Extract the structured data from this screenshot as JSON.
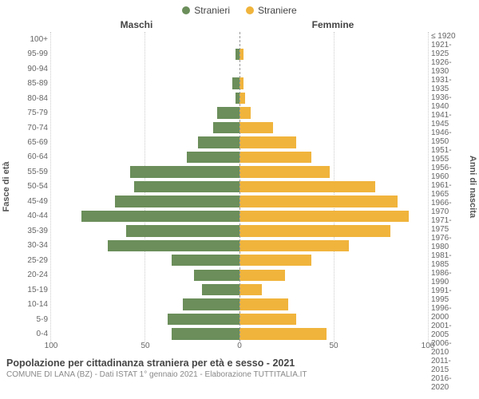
{
  "chart": {
    "type": "population-pyramid",
    "legend": {
      "male": {
        "label": "Stranieri",
        "color": "#6b8e5a"
      },
      "female": {
        "label": "Straniere",
        "color": "#f0b43c"
      }
    },
    "headers": {
      "male": "Maschi",
      "female": "Femmine"
    },
    "y_left_label": "Fasce di età",
    "y_right_label": "Anni di nascita",
    "x_max": 100,
    "x_ticks": [
      0,
      50,
      100
    ],
    "bar_male_color": "#6b8e5a",
    "bar_female_color": "#f0b43c",
    "grid_color": "#cccccc",
    "rows": [
      {
        "age": "100+",
        "birth": "≤ 1920",
        "m": 0,
        "f": 0
      },
      {
        "age": "95-99",
        "birth": "1921-1925",
        "m": 2,
        "f": 2
      },
      {
        "age": "90-94",
        "birth": "1926-1930",
        "m": 0,
        "f": 0
      },
      {
        "age": "85-89",
        "birth": "1931-1935",
        "m": 4,
        "f": 2
      },
      {
        "age": "80-84",
        "birth": "1936-1940",
        "m": 2,
        "f": 3
      },
      {
        "age": "75-79",
        "birth": "1941-1945",
        "m": 12,
        "f": 6
      },
      {
        "age": "70-74",
        "birth": "1946-1950",
        "m": 14,
        "f": 18
      },
      {
        "age": "65-69",
        "birth": "1951-1955",
        "m": 22,
        "f": 30
      },
      {
        "age": "60-64",
        "birth": "1956-1960",
        "m": 28,
        "f": 38
      },
      {
        "age": "55-59",
        "birth": "1961-1965",
        "m": 58,
        "f": 48
      },
      {
        "age": "50-54",
        "birth": "1966-1970",
        "m": 56,
        "f": 72
      },
      {
        "age": "45-49",
        "birth": "1971-1975",
        "m": 66,
        "f": 84
      },
      {
        "age": "40-44",
        "birth": "1976-1980",
        "m": 84,
        "f": 90
      },
      {
        "age": "35-39",
        "birth": "1981-1985",
        "m": 60,
        "f": 80
      },
      {
        "age": "30-34",
        "birth": "1986-1990",
        "m": 70,
        "f": 58
      },
      {
        "age": "25-29",
        "birth": "1991-1995",
        "m": 36,
        "f": 38
      },
      {
        "age": "20-24",
        "birth": "1996-2000",
        "m": 24,
        "f": 24
      },
      {
        "age": "15-19",
        "birth": "2001-2005",
        "m": 20,
        "f": 12
      },
      {
        "age": "10-14",
        "birth": "2006-2010",
        "m": 30,
        "f": 26
      },
      {
        "age": "5-9",
        "birth": "2011-2015",
        "m": 38,
        "f": 30
      },
      {
        "age": "0-4",
        "birth": "2016-2020",
        "m": 36,
        "f": 46
      }
    ]
  },
  "footer": {
    "title": "Popolazione per cittadinanza straniera per età e sesso - 2021",
    "subtitle": "COMUNE DI LANA (BZ) - Dati ISTAT 1° gennaio 2021 - Elaborazione TUTTITALIA.IT"
  }
}
